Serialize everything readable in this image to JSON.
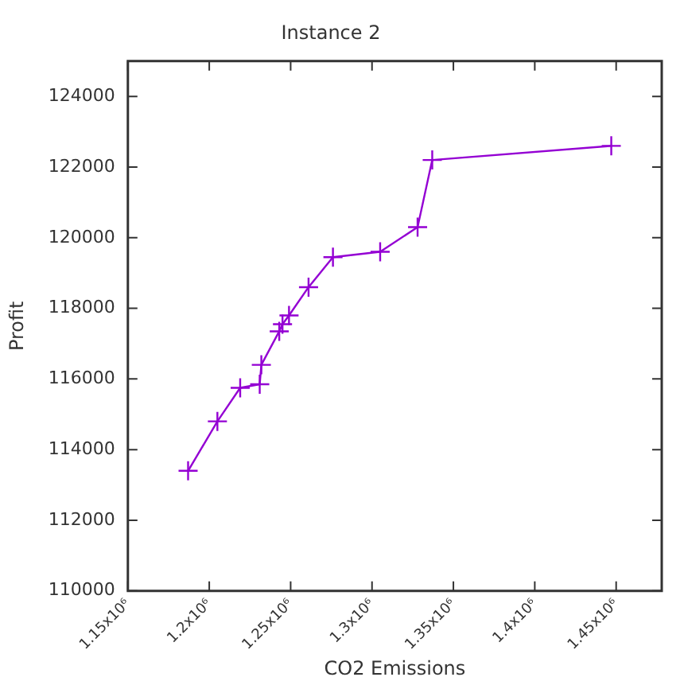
{
  "chart_data": {
    "type": "line",
    "title": "Instance 2",
    "xlabel": "CO2 Emissions",
    "ylabel": "Profit",
    "series": [
      {
        "color": "#9400d3",
        "x": [
          1187000,
          1205000,
          1219000,
          1231000,
          1232000,
          1243000,
          1245000,
          1249000,
          1261000,
          1276000,
          1305000,
          1328000,
          1337000,
          1447000
        ],
        "values": [
          113400,
          114800,
          115750,
          115850,
          116400,
          117350,
          117550,
          117800,
          118600,
          119450,
          119600,
          120300,
          122200,
          122600
        ]
      }
    ],
    "xlim": [
      1150000,
      1478000
    ],
    "xticks": [
      {
        "value": 1150000,
        "label": "1.15x10⁶"
      },
      {
        "value": 1200000,
        "label": "1.2x10⁶"
      },
      {
        "value": 1250000,
        "label": "1.25x10⁶"
      },
      {
        "value": 1300000,
        "label": "1.3x10⁶"
      },
      {
        "value": 1350000,
        "label": "1.35x10⁶"
      },
      {
        "value": 1400000,
        "label": "1.4x10⁶"
      },
      {
        "value": 1450000,
        "label": "1.45x10⁶"
      }
    ],
    "ylim": [
      110000,
      125000
    ],
    "yticks": [
      110000,
      112000,
      114000,
      116000,
      118000,
      120000,
      122000,
      124000
    ],
    "marker": "cross",
    "line_style": "solid",
    "grid": false,
    "legend": false
  }
}
